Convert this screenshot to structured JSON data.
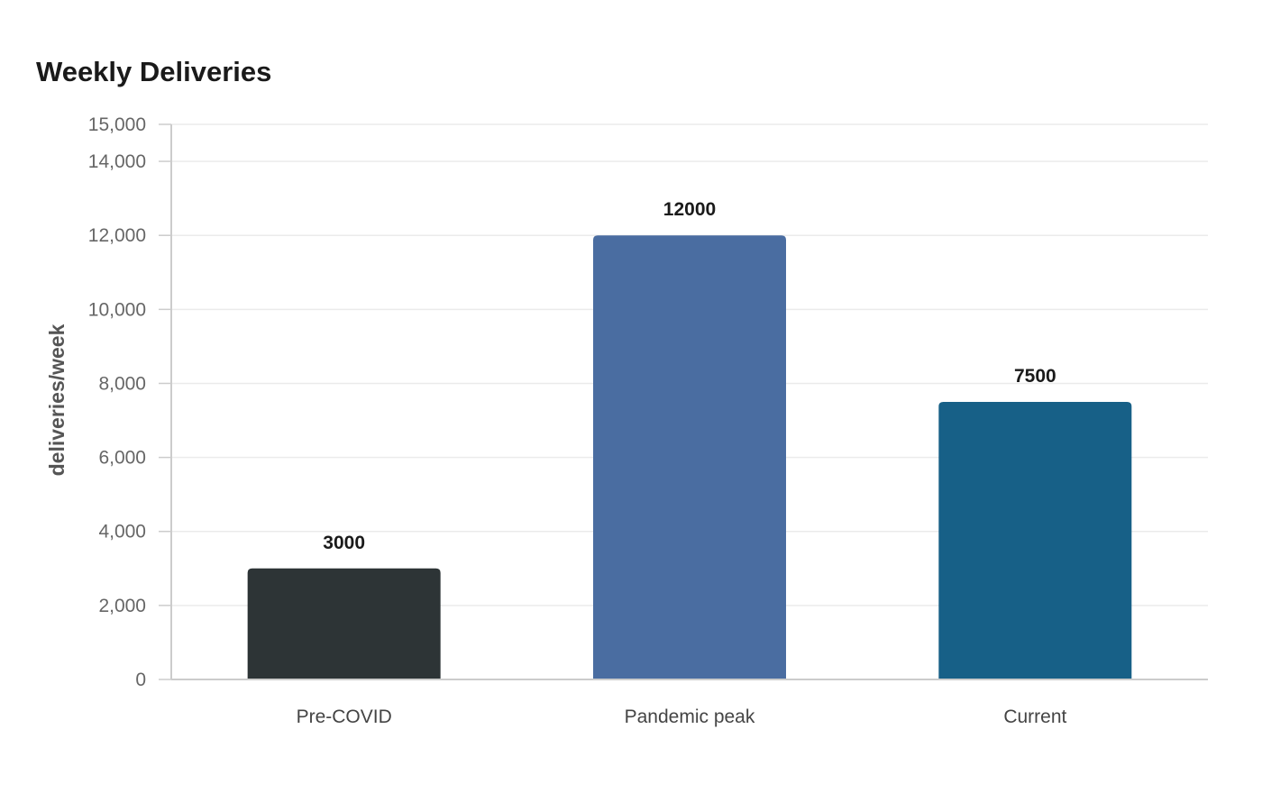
{
  "chart_data": {
    "type": "bar",
    "title": "Weekly Deliveries",
    "ylabel": "deliveries/week",
    "xlabel": "",
    "categories": [
      "Pre-COVID",
      "Pandemic peak",
      "Current"
    ],
    "values": [
      3000,
      12000,
      7500
    ],
    "value_labels": [
      "3000",
      "12000",
      "7500"
    ],
    "colors": [
      "#2d3436",
      "#4a6da1",
      "#176087"
    ],
    "ylim": [
      0,
      15000
    ],
    "yticks": [
      0,
      2000,
      4000,
      6000,
      8000,
      10000,
      12000,
      14000,
      15000
    ],
    "ytick_labels": [
      "0",
      "2,000",
      "4,000",
      "6,000",
      "8,000",
      "10,000",
      "12,000",
      "14,000",
      "15,000"
    ],
    "grid": true,
    "legend": "none"
  }
}
